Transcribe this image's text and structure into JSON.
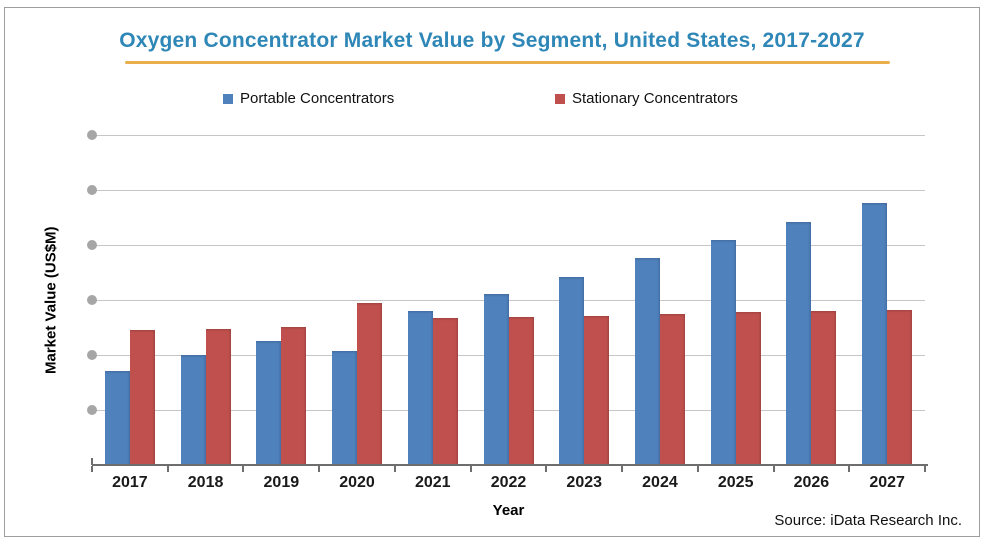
{
  "title": "Oxygen Concentrator Market Value by Segment, United States, 2017-2027",
  "source": "Source: iData Research Inc.",
  "colors": {
    "title": "#2f87b7",
    "underline": "#e9af4d",
    "portable": "#4f81bd",
    "stationary": "#c0504d",
    "gridline": "#c6c6c6",
    "tick_dot": "#a6a6a6",
    "axis": "#6e6e6e",
    "frame_border": "#9e9e9e"
  },
  "legend": {
    "items": [
      {
        "label": "Portable Concentrators",
        "color": "#4f81bd"
      },
      {
        "label": "Stationary Concentrators",
        "color": "#c0504d"
      }
    ]
  },
  "chart_data": {
    "type": "bar",
    "title": "Oxygen Concentrator Market Value by Segment, United States, 2017-2027",
    "categories": [
      "2017",
      "2018",
      "2019",
      "2020",
      "2021",
      "2022",
      "2023",
      "2024",
      "2025",
      "2026",
      "2027"
    ],
    "series": [
      {
        "name": "Portable Concentrators",
        "color": "#4f81bd",
        "values": [
          1.7,
          2.0,
          2.25,
          2.08,
          2.8,
          3.1,
          3.42,
          3.76,
          4.09,
          4.42,
          4.76
        ]
      },
      {
        "name": "Stationary Concentrators",
        "color": "#c0504d",
        "values": [
          2.45,
          2.47,
          2.51,
          2.95,
          2.67,
          2.69,
          2.71,
          2.75,
          2.78,
          2.8,
          2.82
        ]
      }
    ],
    "xlabel": "Year",
    "ylabel": "Market Value (US$M)",
    "ylim": [
      0,
      6
    ],
    "y_gridline_values": [
      1,
      2,
      3,
      4,
      5,
      6
    ],
    "y_tick_labels_masked": true,
    "value_unit": "gridline-units (numeric axis labels are masked with gray dots in source image)",
    "grid": true,
    "legend_position": "top"
  }
}
